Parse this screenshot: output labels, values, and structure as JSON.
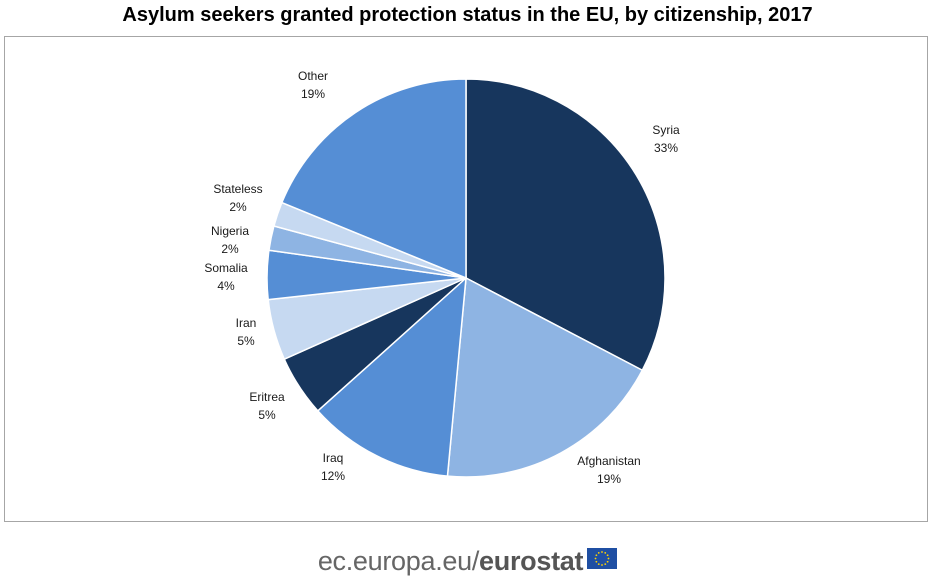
{
  "chart_data": {
    "type": "pie",
    "title": "Asylum seekers granted protection status in the EU, by citizenship, 2017",
    "slices": [
      {
        "label": "Syria",
        "value": 33,
        "display": "33%",
        "color": "#17365d"
      },
      {
        "label": "Afghanistan",
        "value": 19,
        "display": "19%",
        "color": "#8eb4e3"
      },
      {
        "label": "Iraq",
        "value": 12,
        "display": "12%",
        "color": "#558ed5"
      },
      {
        "label": "Eritrea",
        "value": 5,
        "display": "5%",
        "color": "#17365d"
      },
      {
        "label": "Iran",
        "value": 5,
        "display": "5%",
        "color": "#c6d9f1"
      },
      {
        "label": "Somalia",
        "value": 4,
        "display": "4%",
        "color": "#558ed5"
      },
      {
        "label": "Nigeria",
        "value": 2,
        "display": "2%",
        "color": "#8eb4e3"
      },
      {
        "label": "Stateless",
        "value": 2,
        "display": "2%",
        "color": "#c6d9f1"
      },
      {
        "label": "Other",
        "value": 19,
        "display": "19%",
        "color": "#558ed5"
      }
    ],
    "start_angle": "12 o'clock",
    "direction": "clockwise",
    "legend": "none"
  },
  "footer": {
    "domain": "ec.europa.eu/",
    "brand": "eurostat"
  }
}
